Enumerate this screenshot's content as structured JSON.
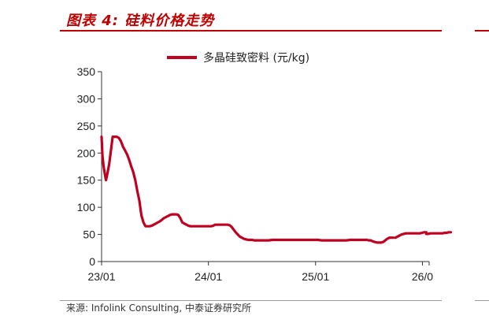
{
  "header": {
    "title": "图表 4:  硅料价格走势"
  },
  "footer": {
    "source": "来源:  Infolink Consulting, 中泰证券研究所"
  },
  "chart_data": {
    "type": "line",
    "title": "",
    "xlabel": "",
    "ylabel": "",
    "ylim": [
      0,
      350
    ],
    "yticks": [
      "0",
      "50",
      "100",
      "150",
      "200",
      "250",
      "300",
      "350"
    ],
    "xticks": [
      "23/01",
      "24/01",
      "25/01",
      "26/0"
    ],
    "grid": false,
    "legend_position": "top-center",
    "series": [
      {
        "name": "多晶硅致密料 (元/kg)",
        "color": "#c00020",
        "x": [
          "2023-01-01",
          "2023-01-04",
          "2023-01-08",
          "2023-01-12",
          "2023-01-16",
          "2023-01-20",
          "2023-01-27",
          "2023-02-08",
          "2023-02-15",
          "2023-02-22",
          "2023-03-01",
          "2023-03-08",
          "2023-03-15",
          "2023-03-22",
          "2023-03-29",
          "2023-04-05",
          "2023-04-12",
          "2023-04-19",
          "2023-04-26",
          "2023-05-03",
          "2023-05-10",
          "2023-05-17",
          "2023-05-24",
          "2023-05-31",
          "2023-06-07",
          "2023-06-14",
          "2023-06-21",
          "2023-06-28",
          "2023-07-05",
          "2023-07-12",
          "2023-07-19",
          "2023-07-26",
          "2023-08-02",
          "2023-08-09",
          "2023-08-16",
          "2023-08-23",
          "2023-08-30",
          "2023-09-06",
          "2023-09-13",
          "2023-09-20",
          "2023-09-27",
          "2023-10-04",
          "2023-10-11",
          "2023-10-18",
          "2023-10-25",
          "2023-11-01",
          "2023-11-08",
          "2023-11-15",
          "2023-11-22",
          "2023-11-29",
          "2023-12-06",
          "2023-12-13",
          "2023-12-20",
          "2023-12-27",
          "2024-01-03",
          "2024-01-10",
          "2024-01-17",
          "2024-01-24",
          "2024-01-31",
          "2024-02-07",
          "2024-02-14",
          "2024-02-21",
          "2024-02-28",
          "2024-03-06",
          "2024-03-13",
          "2024-03-20",
          "2024-03-27",
          "2024-04-03",
          "2024-04-10",
          "2024-04-17",
          "2024-04-24",
          "2024-05-01",
          "2024-05-08",
          "2024-05-15",
          "2024-05-22",
          "2024-05-29",
          "2024-06-05",
          "2024-06-12",
          "2024-06-19",
          "2024-06-26",
          "2024-07-10",
          "2024-07-24",
          "2024-08-07",
          "2024-08-21",
          "2024-09-04",
          "2024-09-18",
          "2024-10-02",
          "2024-10-16",
          "2024-10-30",
          "2024-11-13",
          "2024-11-27",
          "2024-12-11",
          "2024-12-25",
          "2025-01-08",
          "2025-01-22",
          "2025-02-05",
          "2025-02-19",
          "2025-03-05",
          "2025-03-19",
          "2025-04-02",
          "2025-04-16",
          "2025-04-30",
          "2025-05-14",
          "2025-05-28",
          "2025-06-11",
          "2025-06-25",
          "2025-07-02",
          "2025-07-09",
          "2025-07-16",
          "2025-07-23",
          "2025-07-30",
          "2025-08-06",
          "2025-08-13",
          "2025-08-20",
          "2025-08-27",
          "2025-09-03",
          "2025-09-10",
          "2025-09-17",
          "2025-09-24"
        ],
        "values": [
          230,
          195,
          175,
          162,
          150,
          160,
          180,
          230,
          230,
          230,
          228,
          222,
          212,
          205,
          198,
          188,
          176,
          165,
          150,
          130,
          112,
          85,
          72,
          65,
          65,
          65,
          66,
          68,
          70,
          72,
          74,
          77,
          80,
          82,
          84,
          86,
          87,
          87,
          87,
          86,
          80,
          72,
          70,
          68,
          66,
          65,
          65,
          65,
          65,
          65,
          65,
          65,
          65,
          65,
          65,
          65,
          66,
          68,
          68,
          68,
          68,
          68,
          68,
          68,
          67,
          64,
          59,
          54,
          50,
          46,
          44,
          42,
          41,
          40,
          40,
          40,
          39,
          39,
          39,
          39,
          39,
          39,
          40,
          40,
          40,
          40,
          40,
          40,
          40,
          40,
          40,
          40,
          40,
          40,
          39,
          39,
          39,
          39,
          39,
          39,
          39,
          40,
          40,
          40,
          40,
          40,
          39,
          39,
          37,
          36,
          35,
          35,
          35,
          36,
          39,
          42,
          44,
          44,
          44
        ]
      },
      {
        "name": "",
        "color": "#c00020",
        "x": [
          "2025-10-01",
          "2025-10-08",
          "2025-10-15",
          "2025-10-22",
          "2025-10-29",
          "2025-11-05",
          "2025-11-12",
          "2025-11-19",
          "2025-11-26",
          "2025-12-03",
          "2025-12-10",
          "2025-12-17",
          "2025-12-24",
          "2025-12-31",
          "2026-01-07",
          "2026-01-14"
        ],
        "values": [
          44,
          46,
          48,
          50,
          51,
          52,
          52,
          52,
          52,
          52,
          52,
          52,
          52,
          53,
          54,
          54
        ]
      },
      {
        "name": "",
        "color": "#c00020",
        "x": [
          "2026-01-14",
          "2026-01-21",
          "2026-01-28",
          "2026-02-04",
          "2026-02-11",
          "2026-02-18",
          "2026-02-25",
          "2026-03-04",
          "2026-03-11",
          "2026-03-18",
          "2026-03-25",
          "2026-04-01",
          "2026-04-08"
        ],
        "values": [
          51,
          51,
          52,
          52,
          52,
          52,
          52,
          52,
          52,
          53,
          53,
          54,
          54
        ]
      }
    ]
  }
}
